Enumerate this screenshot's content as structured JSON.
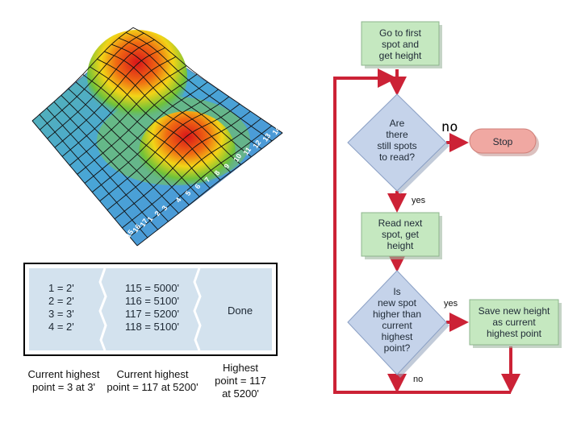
{
  "flowchart": {
    "start": [
      "Go to first",
      "spot and",
      "get height"
    ],
    "check_spots": [
      "Are",
      "there",
      "still spots",
      "to read?"
    ],
    "stop": "Stop",
    "read_next": [
      "Read next",
      "spot, get",
      "height"
    ],
    "compare": [
      "Is",
      "new spot",
      "higher than",
      "current",
      "highest",
      "point?"
    ],
    "save": [
      "Save new height",
      "as current",
      "highest point"
    ],
    "label_no_top": "no",
    "label_yes_1": "yes",
    "label_yes_2": "yes",
    "label_no_bottom": "no"
  },
  "table": {
    "col1": [
      "1 = 2'",
      "2 = 2'",
      "3 = 3'",
      "4 = 2'"
    ],
    "col2": [
      "115 = 5000'",
      "116 = 5100'",
      "117 = 5200'",
      "118 = 5100'"
    ],
    "col3": "Done"
  },
  "captions": {
    "c1": [
      "Current highest",
      "point = 3 at 3'"
    ],
    "c2": [
      "Current highest",
      "point = 117 at 5200'"
    ],
    "c3": [
      "Highest",
      "point = 117",
      "at 5200'"
    ]
  },
  "terrain": {
    "spot_labels_left": [
      "15",
      "16",
      "17",
      "1",
      "2",
      "3"
    ],
    "spot_labels_ridge": [
      "4",
      "5",
      "6",
      "7",
      "8",
      "9",
      "10",
      "11",
      "12",
      "13",
      "14"
    ]
  },
  "colors": {
    "process_fill": "#c5e8c0",
    "decision_fill": "#c5d3ea",
    "stop_fill": "#f0a8a2",
    "arrow": "#cc2236",
    "table_fill": "#d3e2ee"
  }
}
